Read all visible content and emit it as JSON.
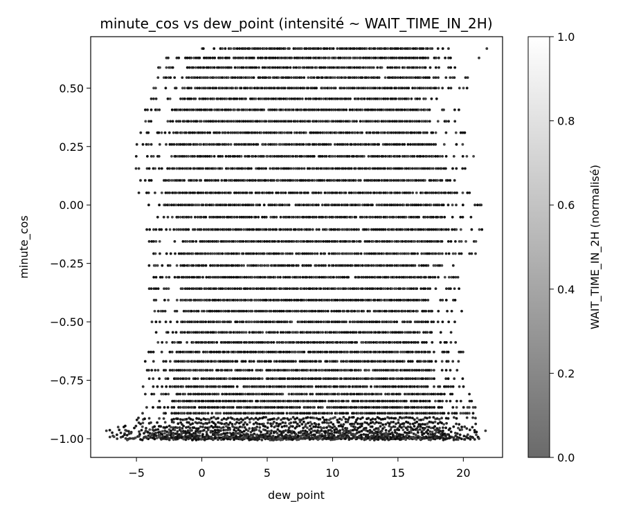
{
  "chart_data": {
    "type": "scatter",
    "title": "minute_cos vs dew_point (intensité ~ WAIT_TIME_IN_2H)",
    "xlabel": "dew_point",
    "ylabel": "minute_cos",
    "xlim": [
      -8.5,
      23.0
    ],
    "ylim": [
      -1.08,
      0.72
    ],
    "x_ticks": [
      -5,
      0,
      5,
      10,
      15,
      20
    ],
    "x_tick_labels": [
      "−5",
      "0",
      "5",
      "10",
      "15",
      "20"
    ],
    "y_ticks": [
      -1.0,
      -0.75,
      -0.5,
      -0.25,
      0.0,
      0.25,
      0.5
    ],
    "y_tick_labels": [
      "−1.00",
      "−0.75",
      "−0.50",
      "−0.25",
      "0.00",
      "0.25",
      "0.50"
    ],
    "grid": false,
    "colorbar": {
      "label": "WAIT_TIME_IN_2H (normalisé)",
      "ticks": [
        0.0,
        0.2,
        0.4,
        0.6,
        0.8,
        1.0
      ],
      "tick_labels": [
        "0.0",
        "0.2",
        "0.4",
        "0.6",
        "0.8",
        "1.0"
      ],
      "color_low": "#6a6a6a",
      "color_high": "#ffffff",
      "range": [
        0.0,
        1.0
      ]
    },
    "point_color": "#111111",
    "series": [
      {
        "row_levels": [
          0.669,
          0.629,
          0.588,
          0.545,
          0.5,
          0.454,
          0.407,
          0.358,
          0.309,
          0.259,
          0.208,
          0.156,
          0.105,
          0.052,
          0.0,
          -0.052,
          -0.105,
          -0.156,
          -0.208,
          -0.259,
          -0.309,
          -0.358,
          -0.407,
          -0.454,
          -0.5,
          -0.545,
          -0.588,
          -0.629,
          -0.669,
          -0.707,
          -0.743,
          -0.777,
          -0.809,
          -0.839,
          -0.866,
          -0.891,
          -0.914,
          -0.934,
          -0.951,
          -0.966,
          -0.978,
          -0.988,
          -0.995,
          -0.999,
          -1.0
        ],
        "row_x_ranges": [
          [
            0.0,
            19.5
          ],
          [
            -3.5,
            19.5
          ],
          [
            -3.5,
            19.5
          ],
          [
            -3.7,
            20.5
          ],
          [
            -4.0,
            20.5
          ],
          [
            -4.0,
            19.0
          ],
          [
            -4.5,
            20.0
          ],
          [
            -4.5,
            20.0
          ],
          [
            -4.7,
            20.5
          ],
          [
            -5.0,
            20.5
          ],
          [
            -5.0,
            21.0
          ],
          [
            -5.0,
            21.0
          ],
          [
            -5.0,
            21.0
          ],
          [
            -5.0,
            21.5
          ],
          [
            -5.0,
            21.5
          ],
          [
            -4.5,
            21.0
          ],
          [
            -4.5,
            21.5
          ],
          [
            -4.0,
            21.0
          ],
          [
            -4.0,
            21.0
          ],
          [
            -4.0,
            20.0
          ],
          [
            -3.8,
            20.0
          ],
          [
            -4.0,
            20.0
          ],
          [
            -4.0,
            19.5
          ],
          [
            -3.8,
            20.0
          ],
          [
            -4.0,
            19.5
          ],
          [
            -4.0,
            19.5
          ],
          [
            -3.5,
            19.5
          ],
          [
            -4.5,
            20.0
          ],
          [
            -4.5,
            20.0
          ],
          [
            -4.5,
            20.0
          ],
          [
            -4.5,
            20.0
          ],
          [
            -4.5,
            20.0
          ],
          [
            -4.5,
            21.0
          ],
          [
            -4.5,
            21.0
          ],
          [
            -4.5,
            21.0
          ],
          [
            -4.5,
            21.0
          ],
          [
            -5.0,
            21.0
          ],
          [
            -5.0,
            21.0
          ],
          [
            -6.0,
            21.0
          ],
          [
            -7.0,
            21.5
          ],
          [
            -7.0,
            21.5
          ],
          [
            -7.0,
            21.5
          ],
          [
            -6.5,
            21.5
          ],
          [
            -6.0,
            21.0
          ],
          [
            -6.0,
            21.0
          ]
        ]
      }
    ],
    "outlier_points": [
      {
        "x": 21.8,
        "y": 0.669
      },
      {
        "x": 21.2,
        "y": 0.629
      },
      {
        "x": -7.3,
        "y": -0.966
      },
      {
        "x": -6.8,
        "y": -0.988
      },
      {
        "x": -6.4,
        "y": -0.95
      },
      {
        "x": -5.8,
        "y": -0.999
      },
      {
        "x": -5.3,
        "y": -0.999
      },
      {
        "x": -4.8,
        "y": -0.99
      },
      {
        "x": -4.3,
        "y": -0.97
      },
      {
        "x": -2.8,
        "y": -0.93
      },
      {
        "x": 21.2,
        "y": -1.0
      },
      {
        "x": 21.7,
        "y": -0.966
      }
    ]
  }
}
